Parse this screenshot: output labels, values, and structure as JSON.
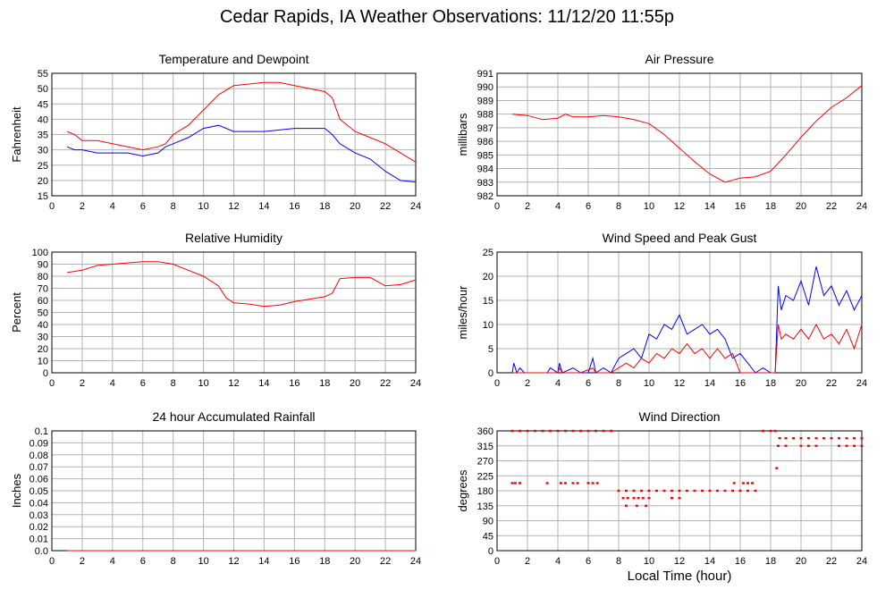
{
  "title": "Cedar Rapids, IA Weather Observations: 11/12/20 11:55p",
  "x_axis_label": "Local Time (hour)",
  "colors": {
    "series_a": "#0000ff",
    "series_b": "#ff0000",
    "grid": "#b3b3b3",
    "axis": "#000000"
  },
  "chart_data": [
    {
      "type": "line",
      "title": "Temperature and Dewpoint",
      "ylabel": "Fahrenheit",
      "xlim": [
        0,
        24
      ],
      "ylim": [
        15,
        55
      ],
      "xticks": [
        0,
        2,
        4,
        6,
        8,
        10,
        12,
        14,
        16,
        18,
        20,
        22,
        24
      ],
      "yticks": [
        15,
        20,
        25,
        30,
        35,
        40,
        45,
        50,
        55
      ],
      "grid": true,
      "series": [
        {
          "color": "#ff0000",
          "style": "line",
          "x": [
            1.0,
            1.5,
            2.0,
            3.0,
            4.0,
            5.0,
            6.0,
            7.0,
            7.5,
            8.0,
            9.0,
            10.0,
            11.0,
            12.0,
            13.0,
            14.0,
            15.0,
            16.0,
            17.0,
            18.0,
            18.5,
            19.0,
            20.0,
            21.0,
            22.0,
            23.0,
            24.0
          ],
          "y": [
            36,
            35,
            33,
            33,
            32,
            31,
            30,
            31,
            32,
            35,
            38,
            43,
            48,
            51,
            51.5,
            52,
            52,
            51,
            50,
            49,
            47,
            40,
            36,
            34,
            32,
            29,
            26
          ]
        },
        {
          "color": "#0000ff",
          "style": "line",
          "x": [
            1.0,
            1.5,
            2.0,
            3.0,
            4.0,
            5.0,
            6.0,
            7.0,
            7.5,
            8.0,
            9.0,
            10.0,
            11.0,
            12.0,
            13.0,
            14.0,
            15.0,
            16.0,
            17.0,
            18.0,
            18.5,
            19.0,
            20.0,
            21.0,
            22.0,
            23.0,
            24.0
          ],
          "y": [
            31,
            30,
            30,
            29,
            29,
            29,
            28,
            29,
            31,
            32,
            34,
            37,
            38,
            36,
            36,
            36,
            36.5,
            37,
            37,
            37,
            35,
            32,
            29,
            27,
            23,
            20,
            19.5
          ]
        }
      ]
    },
    {
      "type": "line",
      "title": "Air Pressure",
      "ylabel": "millibars",
      "xlim": [
        0,
        24
      ],
      "ylim": [
        982,
        991
      ],
      "xticks": [
        0,
        2,
        4,
        6,
        8,
        10,
        12,
        14,
        16,
        18,
        20,
        22,
        24
      ],
      "yticks": [
        982,
        983,
        984,
        985,
        986,
        987,
        988,
        989,
        990,
        991
      ],
      "grid": true,
      "series": [
        {
          "color": "#ff0000",
          "style": "line",
          "x": [
            1.0,
            2.0,
            3.0,
            4.0,
            4.5,
            5.0,
            6.0,
            7.0,
            8.0,
            9.0,
            10.0,
            11.0,
            12.0,
            13.0,
            14.0,
            15.0,
            16.0,
            17.0,
            18.0,
            19.0,
            20.0,
            21.0,
            22.0,
            23.0,
            24.0
          ],
          "y": [
            988,
            987.9,
            987.6,
            987.7,
            988,
            987.8,
            987.8,
            987.9,
            987.8,
            987.6,
            987.3,
            986.5,
            985.5,
            984.5,
            983.6,
            983.0,
            983.3,
            983.4,
            983.8,
            985.0,
            986.3,
            987.5,
            988.5,
            989.2,
            990.1
          ]
        }
      ]
    },
    {
      "type": "line",
      "title": "Relative Humidity",
      "ylabel": "Percent",
      "xlim": [
        0,
        24
      ],
      "ylim": [
        0,
        100
      ],
      "xticks": [
        0,
        2,
        4,
        6,
        8,
        10,
        12,
        14,
        16,
        18,
        20,
        22,
        24
      ],
      "yticks": [
        0,
        10,
        20,
        30,
        40,
        50,
        60,
        70,
        80,
        90,
        100
      ],
      "grid": true,
      "series": [
        {
          "color": "#ff0000",
          "style": "line",
          "x": [
            1.0,
            2.0,
            3.0,
            4.0,
            5.0,
            6.0,
            7.0,
            8.0,
            9.0,
            10.0,
            11.0,
            11.5,
            12.0,
            13.0,
            14.0,
            15.0,
            16.0,
            17.0,
            18.0,
            18.5,
            19.0,
            20.0,
            21.0,
            22.0,
            23.0,
            24.0
          ],
          "y": [
            83,
            85,
            89,
            90,
            91,
            92,
            92,
            90,
            85,
            80,
            72,
            62,
            58,
            57,
            55,
            56,
            59,
            61,
            63,
            66,
            78,
            79,
            79,
            72,
            73,
            77
          ]
        }
      ]
    },
    {
      "type": "line",
      "title": "Wind Speed and Peak Gust",
      "ylabel": "miles/hour",
      "xlim": [
        0,
        24
      ],
      "ylim": [
        0,
        25
      ],
      "xticks": [
        0,
        2,
        4,
        6,
        8,
        10,
        12,
        14,
        16,
        18,
        20,
        22,
        24
      ],
      "yticks": [
        0,
        5,
        10,
        15,
        20,
        25
      ],
      "grid": true,
      "series": [
        {
          "color": "#0000ff",
          "style": "line",
          "x": [
            1.0,
            1.1,
            1.3,
            1.5,
            1.8,
            2.5,
            3.3,
            3.5,
            4.0,
            4.1,
            4.3,
            5.0,
            5.5,
            6.0,
            6.3,
            6.5,
            7.0,
            7.5,
            8.0,
            8.5,
            9.0,
            9.5,
            10.0,
            10.5,
            11.0,
            11.5,
            12.0,
            12.5,
            13.0,
            13.5,
            14.0,
            14.5,
            15.0,
            15.5,
            16.0,
            16.5,
            17.0,
            17.5,
            18.0,
            18.3,
            18.5,
            18.7,
            19.0,
            19.5,
            20.0,
            20.5,
            21.0,
            21.5,
            22.0,
            22.5,
            23.0,
            23.5,
            24.0
          ],
          "y": [
            0,
            2,
            0,
            1,
            0,
            0,
            0,
            1,
            0,
            2,
            0,
            1,
            0,
            0,
            3,
            0,
            1,
            0,
            3,
            4,
            5,
            3,
            8,
            7,
            10,
            9,
            12,
            8,
            9,
            10,
            8,
            9,
            7,
            3,
            4,
            2,
            0,
            1,
            0,
            0,
            18,
            13,
            16,
            15,
            19,
            14,
            22,
            16,
            18,
            14,
            17,
            13,
            16
          ]
        },
        {
          "color": "#ff0000",
          "style": "line",
          "x": [
            1.0,
            3.0,
            4.0,
            4.1,
            4.3,
            5.5,
            6.3,
            6.5,
            7.5,
            8.0,
            8.5,
            9.0,
            9.5,
            10.0,
            10.5,
            11.0,
            11.5,
            12.0,
            12.5,
            13.0,
            13.5,
            14.0,
            14.5,
            15.0,
            15.5,
            16.0,
            17.0,
            18.0,
            18.3,
            18.5,
            18.7,
            19.0,
            19.5,
            20.0,
            20.5,
            21.0,
            21.5,
            22.0,
            22.5,
            23.0,
            23.5,
            24.0
          ],
          "y": [
            0,
            0,
            0,
            1,
            0,
            0,
            1,
            0,
            0,
            1,
            2,
            1,
            3,
            2,
            4,
            3,
            5,
            4,
            6,
            4,
            5,
            3,
            5,
            3,
            4,
            0,
            0,
            0,
            0,
            10,
            7,
            8,
            7,
            9,
            7,
            10,
            7,
            8,
            6,
            9,
            5,
            10
          ]
        }
      ]
    },
    {
      "type": "line",
      "title": "24 hour Accumulated Rainfall",
      "ylabel": "Inches",
      "xlim": [
        0,
        24
      ],
      "ylim": [
        0,
        0.1
      ],
      "xticks": [
        0,
        2,
        4,
        6,
        8,
        10,
        12,
        14,
        16,
        18,
        20,
        22,
        24
      ],
      "yticks": [
        "0.0",
        "0.01",
        "0.02",
        "0.03",
        "0.04",
        "0.05",
        "0.06",
        "0.07",
        "0.08",
        "0.09",
        "0.1"
      ],
      "grid": true,
      "series": [
        {
          "color": "#ff0000",
          "style": "line",
          "x": [
            1,
            24
          ],
          "y": [
            0,
            0
          ]
        }
      ]
    },
    {
      "type": "scatter",
      "title": "Wind Direction",
      "ylabel": "degrees",
      "xlim": [
        0,
        24
      ],
      "ylim": [
        0,
        360
      ],
      "xticks": [
        0,
        2,
        4,
        6,
        8,
        10,
        12,
        14,
        16,
        18,
        20,
        22,
        24
      ],
      "yticks": [
        0,
        45,
        90,
        135,
        180,
        225,
        270,
        315,
        360
      ],
      "grid": true,
      "series": [
        {
          "color": "#ff0000",
          "style": "points",
          "x": [
            1.0,
            1.5,
            2.0,
            2.5,
            3.0,
            3.5,
            4.0,
            4.5,
            5.0,
            5.5,
            6.0,
            6.5,
            7.0,
            7.5,
            1.0,
            1.2,
            1.5,
            3.3,
            4.2,
            4.5,
            5.0,
            5.3,
            6.0,
            6.3,
            6.6,
            8.0,
            8.5,
            9.0,
            9.5,
            10.0,
            10.5,
            11.0,
            11.5,
            12.0,
            12.5,
            13.0,
            13.5,
            14.0,
            14.5,
            15.0,
            15.5,
            16.0,
            16.5,
            17.0,
            8.3,
            8.6,
            9.0,
            9.3,
            9.6,
            10.0,
            8.5,
            9.2,
            9.8,
            15.6,
            16.2,
            16.5,
            16.8,
            11.5,
            12.0,
            17.5,
            18.0,
            18.3,
            18.6,
            19.0,
            19.5,
            20.0,
            20.5,
            21.0,
            21.5,
            22.0,
            22.5,
            23.0,
            23.5,
            24.0,
            18.5,
            19.0,
            20.0,
            20.5,
            21.0,
            22.5,
            23.0,
            23.5,
            24.0,
            18.4
          ],
          "y": [
            360,
            360,
            360,
            360,
            360,
            360,
            360,
            360,
            360,
            360,
            360,
            360,
            360,
            360,
            203,
            203,
            203,
            203,
            203,
            203,
            203,
            203,
            203,
            203,
            203,
            180,
            180,
            180,
            180,
            180,
            180,
            180,
            180,
            180,
            180,
            180,
            180,
            180,
            180,
            180,
            180,
            180,
            180,
            180,
            158,
            158,
            158,
            158,
            158,
            158,
            135,
            135,
            135,
            203,
            203,
            203,
            203,
            158,
            158,
            360,
            360,
            360,
            338,
            338,
            338,
            338,
            338,
            338,
            338,
            338,
            338,
            338,
            338,
            338,
            315,
            315,
            315,
            315,
            315,
            315,
            315,
            315,
            315,
            248
          ]
        }
      ]
    }
  ]
}
